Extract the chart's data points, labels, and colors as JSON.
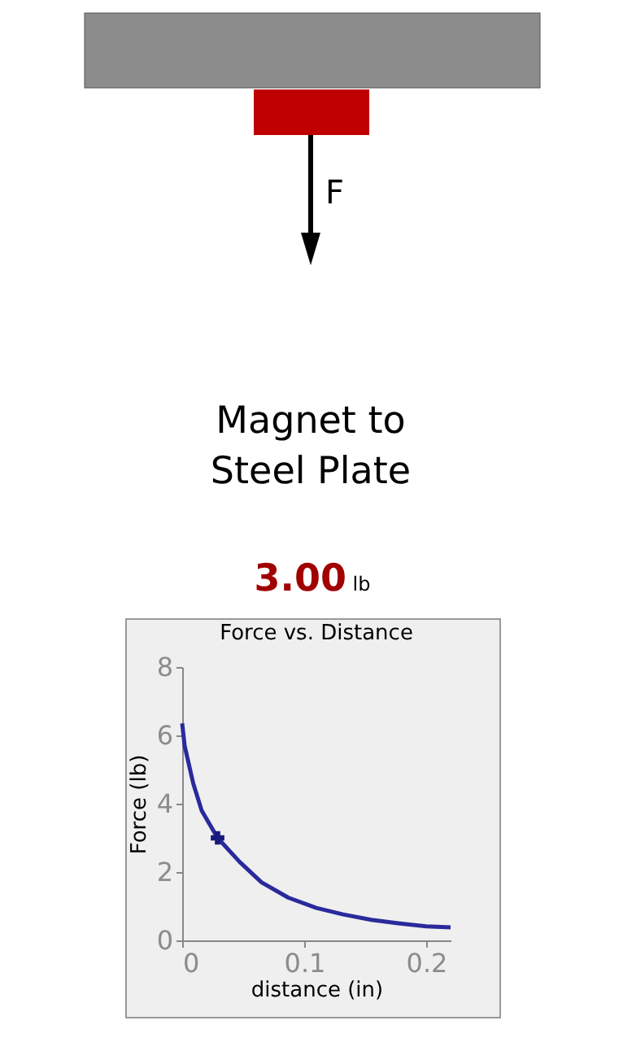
{
  "chart_data": {
    "type": "line",
    "title": "Force vs. Distance",
    "xlabel": "distance (in)",
    "ylabel": "Force (lb)",
    "annotations": [
      "3.00 lb",
      "F",
      "Magnet to Steel Plate"
    ],
    "series": [
      {
        "color": "#2a2a9c",
        "x": [
          0,
          0.002,
          0.009,
          0.016,
          0.029,
          0.047,
          0.065,
          0.087,
          0.11,
          0.132,
          0.155,
          0.177,
          0.2,
          0.22
        ],
        "values": [
          6.35,
          5.7,
          4.6,
          3.8,
          3.0,
          2.3,
          1.7,
          1.25,
          0.95,
          0.76,
          0.6,
          0.5,
          0.41,
          0.38
        ]
      },
      {
        "type": "scatter",
        "color": "#1a1a7c",
        "marker": "cross",
        "x": [
          0.029
        ],
        "values": [
          3.0
        ]
      }
    ],
    "xlim": [
      0,
      0.22
    ],
    "xticks": [
      0,
      0.1,
      0.2
    ],
    "ylim": [
      0,
      8
    ],
    "yticks": [
      0,
      2,
      4,
      6,
      8
    ],
    "grid": false
  }
}
